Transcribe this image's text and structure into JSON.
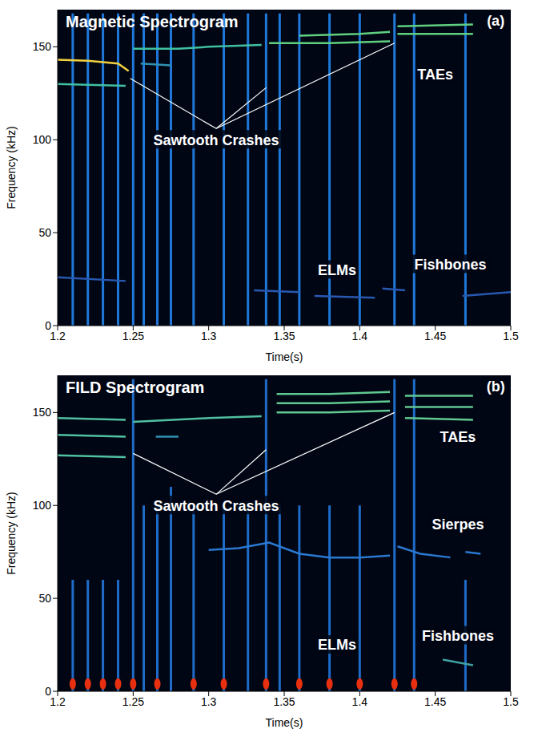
{
  "chart_data": [
    {
      "type": "line",
      "title": "Magnetic Spectrogram",
      "xlabel": "Time(s)",
      "ylabel": "Frequency (kHz)",
      "xlim": [
        1.2,
        1.5
      ],
      "xticks": [
        1.2,
        1.25,
        1.3,
        1.35,
        1.4,
        1.45,
        1.5
      ],
      "ylim": [
        0,
        170
      ],
      "yticks": [
        0,
        50,
        100,
        150
      ],
      "grid": false,
      "series": [
        {
          "color": "#f0d040",
          "x": [
            1.2,
            1.22,
            1.24,
            1.247
          ],
          "values": [
            143,
            142.5,
            141,
            137
          ]
        },
        {
          "color": "#40c0a0",
          "x": [
            1.2,
            1.245
          ],
          "values": [
            130,
            129
          ]
        },
        {
          "color": "#40c0a0",
          "x": [
            1.25,
            1.28,
            1.3,
            1.335
          ],
          "values": [
            149,
            149,
            150,
            151
          ]
        },
        {
          "color": "#3090b0",
          "x": [
            1.255,
            1.275
          ],
          "values": [
            141,
            140
          ]
        },
        {
          "color": "#60d080",
          "x": [
            1.34,
            1.38,
            1.42
          ],
          "values": [
            152,
            152,
            153
          ]
        },
        {
          "color": "#60d080",
          "x": [
            1.36,
            1.4,
            1.42
          ],
          "values": [
            156,
            157,
            158
          ]
        },
        {
          "color": "#60d080",
          "x": [
            1.425,
            1.475
          ],
          "values": [
            161,
            162
          ]
        },
        {
          "color": "#60d080",
          "x": [
            1.425,
            1.475
          ],
          "values": [
            157,
            157
          ]
        },
        {
          "color": "#2858b0",
          "x": [
            1.2,
            1.245
          ],
          "values": [
            26,
            24
          ]
        },
        {
          "color": "#2858b0",
          "x": [
            1.33,
            1.36
          ],
          "values": [
            19,
            18
          ]
        },
        {
          "color": "#2858b0",
          "x": [
            1.37,
            1.41
          ],
          "values": [
            16,
            15
          ]
        },
        {
          "color": "#2858b0",
          "x": [
            1.415,
            1.43
          ],
          "values": [
            20,
            19
          ]
        },
        {
          "color": "#2858b0",
          "x": [
            1.468,
            1.5
          ],
          "values": [
            16,
            18
          ]
        }
      ],
      "bursts": {
        "color": "#1f78d8",
        "x": [
          1.21,
          1.22,
          1.23,
          1.24,
          1.25,
          1.257,
          1.266,
          1.275,
          1.29,
          1.31,
          1.326,
          1.338,
          1.347,
          1.36,
          1.38,
          1.4,
          1.423,
          1.436,
          1.47
        ],
        "fmax": [
          168,
          168,
          168,
          168,
          168,
          168,
          168,
          168,
          168,
          168,
          168,
          168,
          168,
          168,
          168,
          168,
          168,
          168,
          168
        ]
      },
      "annotations": [
        {
          "text": "(a)",
          "x": 1.49,
          "y": 164
        },
        {
          "text": "Sawtooth Crashes",
          "x": 1.305,
          "y": 100,
          "targets": [
            [
              1.248,
              133
            ],
            [
              1.338,
              128
            ],
            [
              1.423,
              152
            ]
          ]
        },
        {
          "text": "TAEs",
          "x": 1.45,
          "y": 135
        },
        {
          "text": "ELMs",
          "x": 1.385,
          "y": 30
        },
        {
          "text": "Fishbones",
          "x": 1.46,
          "y": 33
        }
      ]
    },
    {
      "type": "line",
      "title": "FILD Spectrogram",
      "xlabel": "Time(s)",
      "ylabel": "Frequency (kHz)",
      "xlim": [
        1.2,
        1.5
      ],
      "xticks": [
        1.2,
        1.25,
        1.3,
        1.35,
        1.4,
        1.45,
        1.5
      ],
      "ylim": [
        0,
        170
      ],
      "yticks": [
        0,
        50,
        100,
        150
      ],
      "grid": false,
      "series": [
        {
          "color": "#50c0a0",
          "x": [
            1.2,
            1.245
          ],
          "values": [
            127,
            126
          ]
        },
        {
          "color": "#50c0a0",
          "x": [
            1.2,
            1.245
          ],
          "values": [
            138,
            137
          ]
        },
        {
          "color": "#50c0a0",
          "x": [
            1.2,
            1.245
          ],
          "values": [
            147,
            146
          ]
        },
        {
          "color": "#50c0a0",
          "x": [
            1.25,
            1.3,
            1.335
          ],
          "values": [
            145,
            147,
            148
          ]
        },
        {
          "color": "#3090b0",
          "x": [
            1.265,
            1.28
          ],
          "values": [
            137,
            137
          ]
        },
        {
          "color": "#60c890",
          "x": [
            1.345,
            1.38,
            1.42
          ],
          "values": [
            160,
            160,
            161
          ]
        },
        {
          "color": "#60c890",
          "x": [
            1.345,
            1.38,
            1.42
          ],
          "values": [
            155,
            155,
            156
          ]
        },
        {
          "color": "#60c890",
          "x": [
            1.345,
            1.38,
            1.42
          ],
          "values": [
            150,
            150,
            151
          ]
        },
        {
          "color": "#60c890",
          "x": [
            1.43,
            1.475
          ],
          "values": [
            159,
            159
          ]
        },
        {
          "color": "#60c890",
          "x": [
            1.43,
            1.475
          ],
          "values": [
            153,
            153
          ]
        },
        {
          "color": "#60c890",
          "x": [
            1.43,
            1.475
          ],
          "values": [
            147,
            146
          ]
        },
        {
          "color": "#2a78d0",
          "x": [
            1.3,
            1.32,
            1.34,
            1.36,
            1.38,
            1.4,
            1.42
          ],
          "values": [
            76,
            77,
            80,
            74,
            72,
            72,
            73
          ]
        },
        {
          "color": "#2a78d0",
          "x": [
            1.425,
            1.44,
            1.46
          ],
          "values": [
            78,
            74,
            72
          ]
        },
        {
          "color": "#2a78d0",
          "x": [
            1.47,
            1.48
          ],
          "values": [
            75,
            74
          ]
        },
        {
          "color": "#40a0a0",
          "x": [
            1.455,
            1.475
          ],
          "values": [
            17,
            14
          ]
        },
        {
          "color": "#e83010",
          "marker": "circle",
          "x": [
            1.21,
            1.22,
            1.23,
            1.24,
            1.25,
            1.266,
            1.29,
            1.31,
            1.338,
            1.36,
            1.38,
            1.4,
            1.423,
            1.436
          ],
          "values": [
            4,
            4,
            4,
            4,
            4,
            4,
            4,
            4,
            4,
            4,
            4,
            4,
            4,
            4
          ]
        }
      ],
      "bursts": {
        "color": "#1f6cc8",
        "x": [
          1.21,
          1.22,
          1.23,
          1.24,
          1.25,
          1.257,
          1.266,
          1.275,
          1.29,
          1.31,
          1.326,
          1.338,
          1.347,
          1.36,
          1.38,
          1.4,
          1.423,
          1.436,
          1.47
        ],
        "fmax": [
          60,
          60,
          60,
          60,
          168,
          100,
          100,
          110,
          100,
          100,
          100,
          168,
          100,
          100,
          100,
          100,
          168,
          168,
          60
        ]
      },
      "annotations": [
        {
          "text": "(b)",
          "x": 1.49,
          "y": 164
        },
        {
          "text": "Sawtooth Crashes",
          "x": 1.305,
          "y": 100,
          "targets": [
            [
              1.25,
              128
            ],
            [
              1.338,
              130
            ],
            [
              1.423,
              150
            ]
          ]
        },
        {
          "text": "TAEs",
          "x": 1.465,
          "y": 137
        },
        {
          "text": "Sierpes",
          "x": 1.465,
          "y": 90
        },
        {
          "text": "ELMs",
          "x": 1.385,
          "y": 25
        },
        {
          "text": "Fishbones",
          "x": 1.465,
          "y": 30
        }
      ]
    }
  ]
}
